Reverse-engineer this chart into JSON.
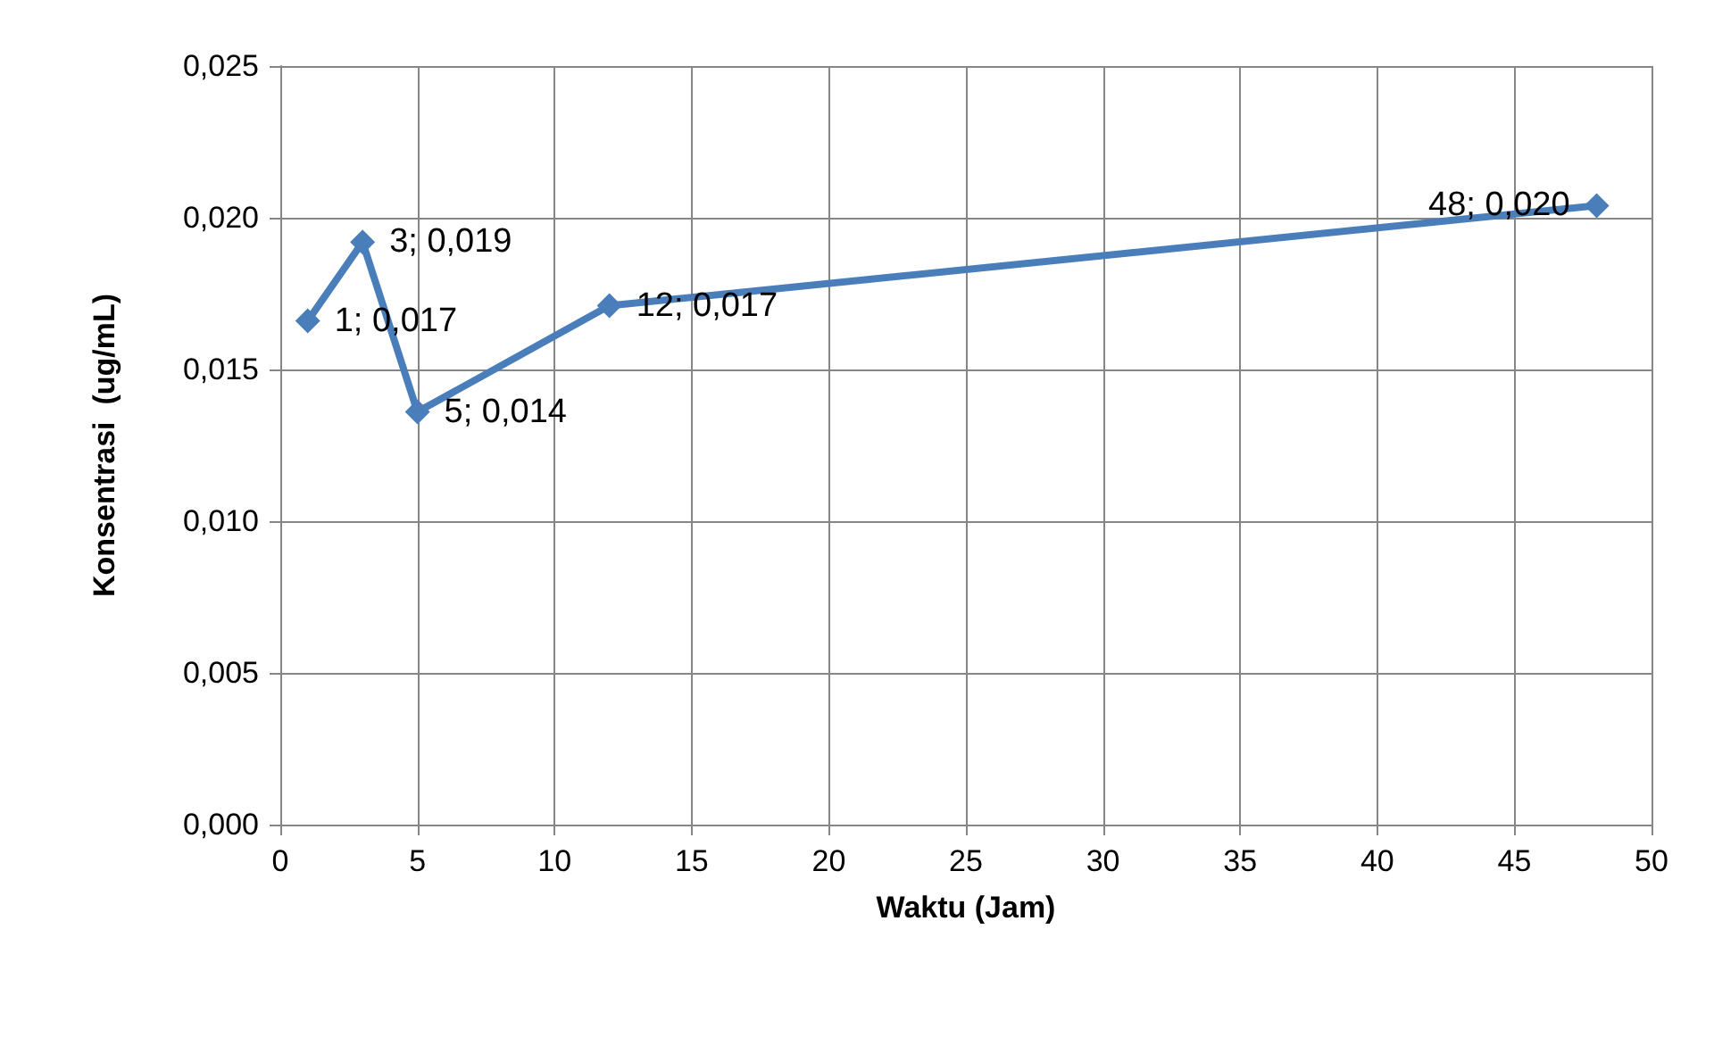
{
  "chart_data": {
    "type": "line",
    "xlabel": "Waktu (Jam)",
    "ylabel": "Konsentrasi  (ug/mL)",
    "x": [
      1,
      3,
      5,
      12,
      48
    ],
    "series": [
      {
        "color": "#4a7ebb",
        "values": [
          0.0166,
          0.0192,
          0.0136,
          0.0171,
          0.0204
        ],
        "value_labels": [
          "1; 0,017",
          "3; 0,019",
          "5; 0,014",
          "12; 0,017",
          "48; 0,020"
        ]
      }
    ],
    "xlim": [
      0,
      50
    ],
    "xticks": [
      0,
      5,
      10,
      15,
      20,
      25,
      30,
      35,
      40,
      45,
      50
    ],
    "ylim": [
      0,
      0.025
    ],
    "yticks": [
      {
        "value": 0,
        "label": "0,000"
      },
      {
        "value": 0.005,
        "label": "0,005"
      },
      {
        "value": 0.01,
        "label": "0,010"
      },
      {
        "value": 0.015,
        "label": "0,015"
      },
      {
        "value": 0.02,
        "label": "0,020"
      },
      {
        "value": 0.025,
        "label": "0,025"
      }
    ],
    "grid": true,
    "marker": "diamond",
    "line_style": "solid"
  }
}
